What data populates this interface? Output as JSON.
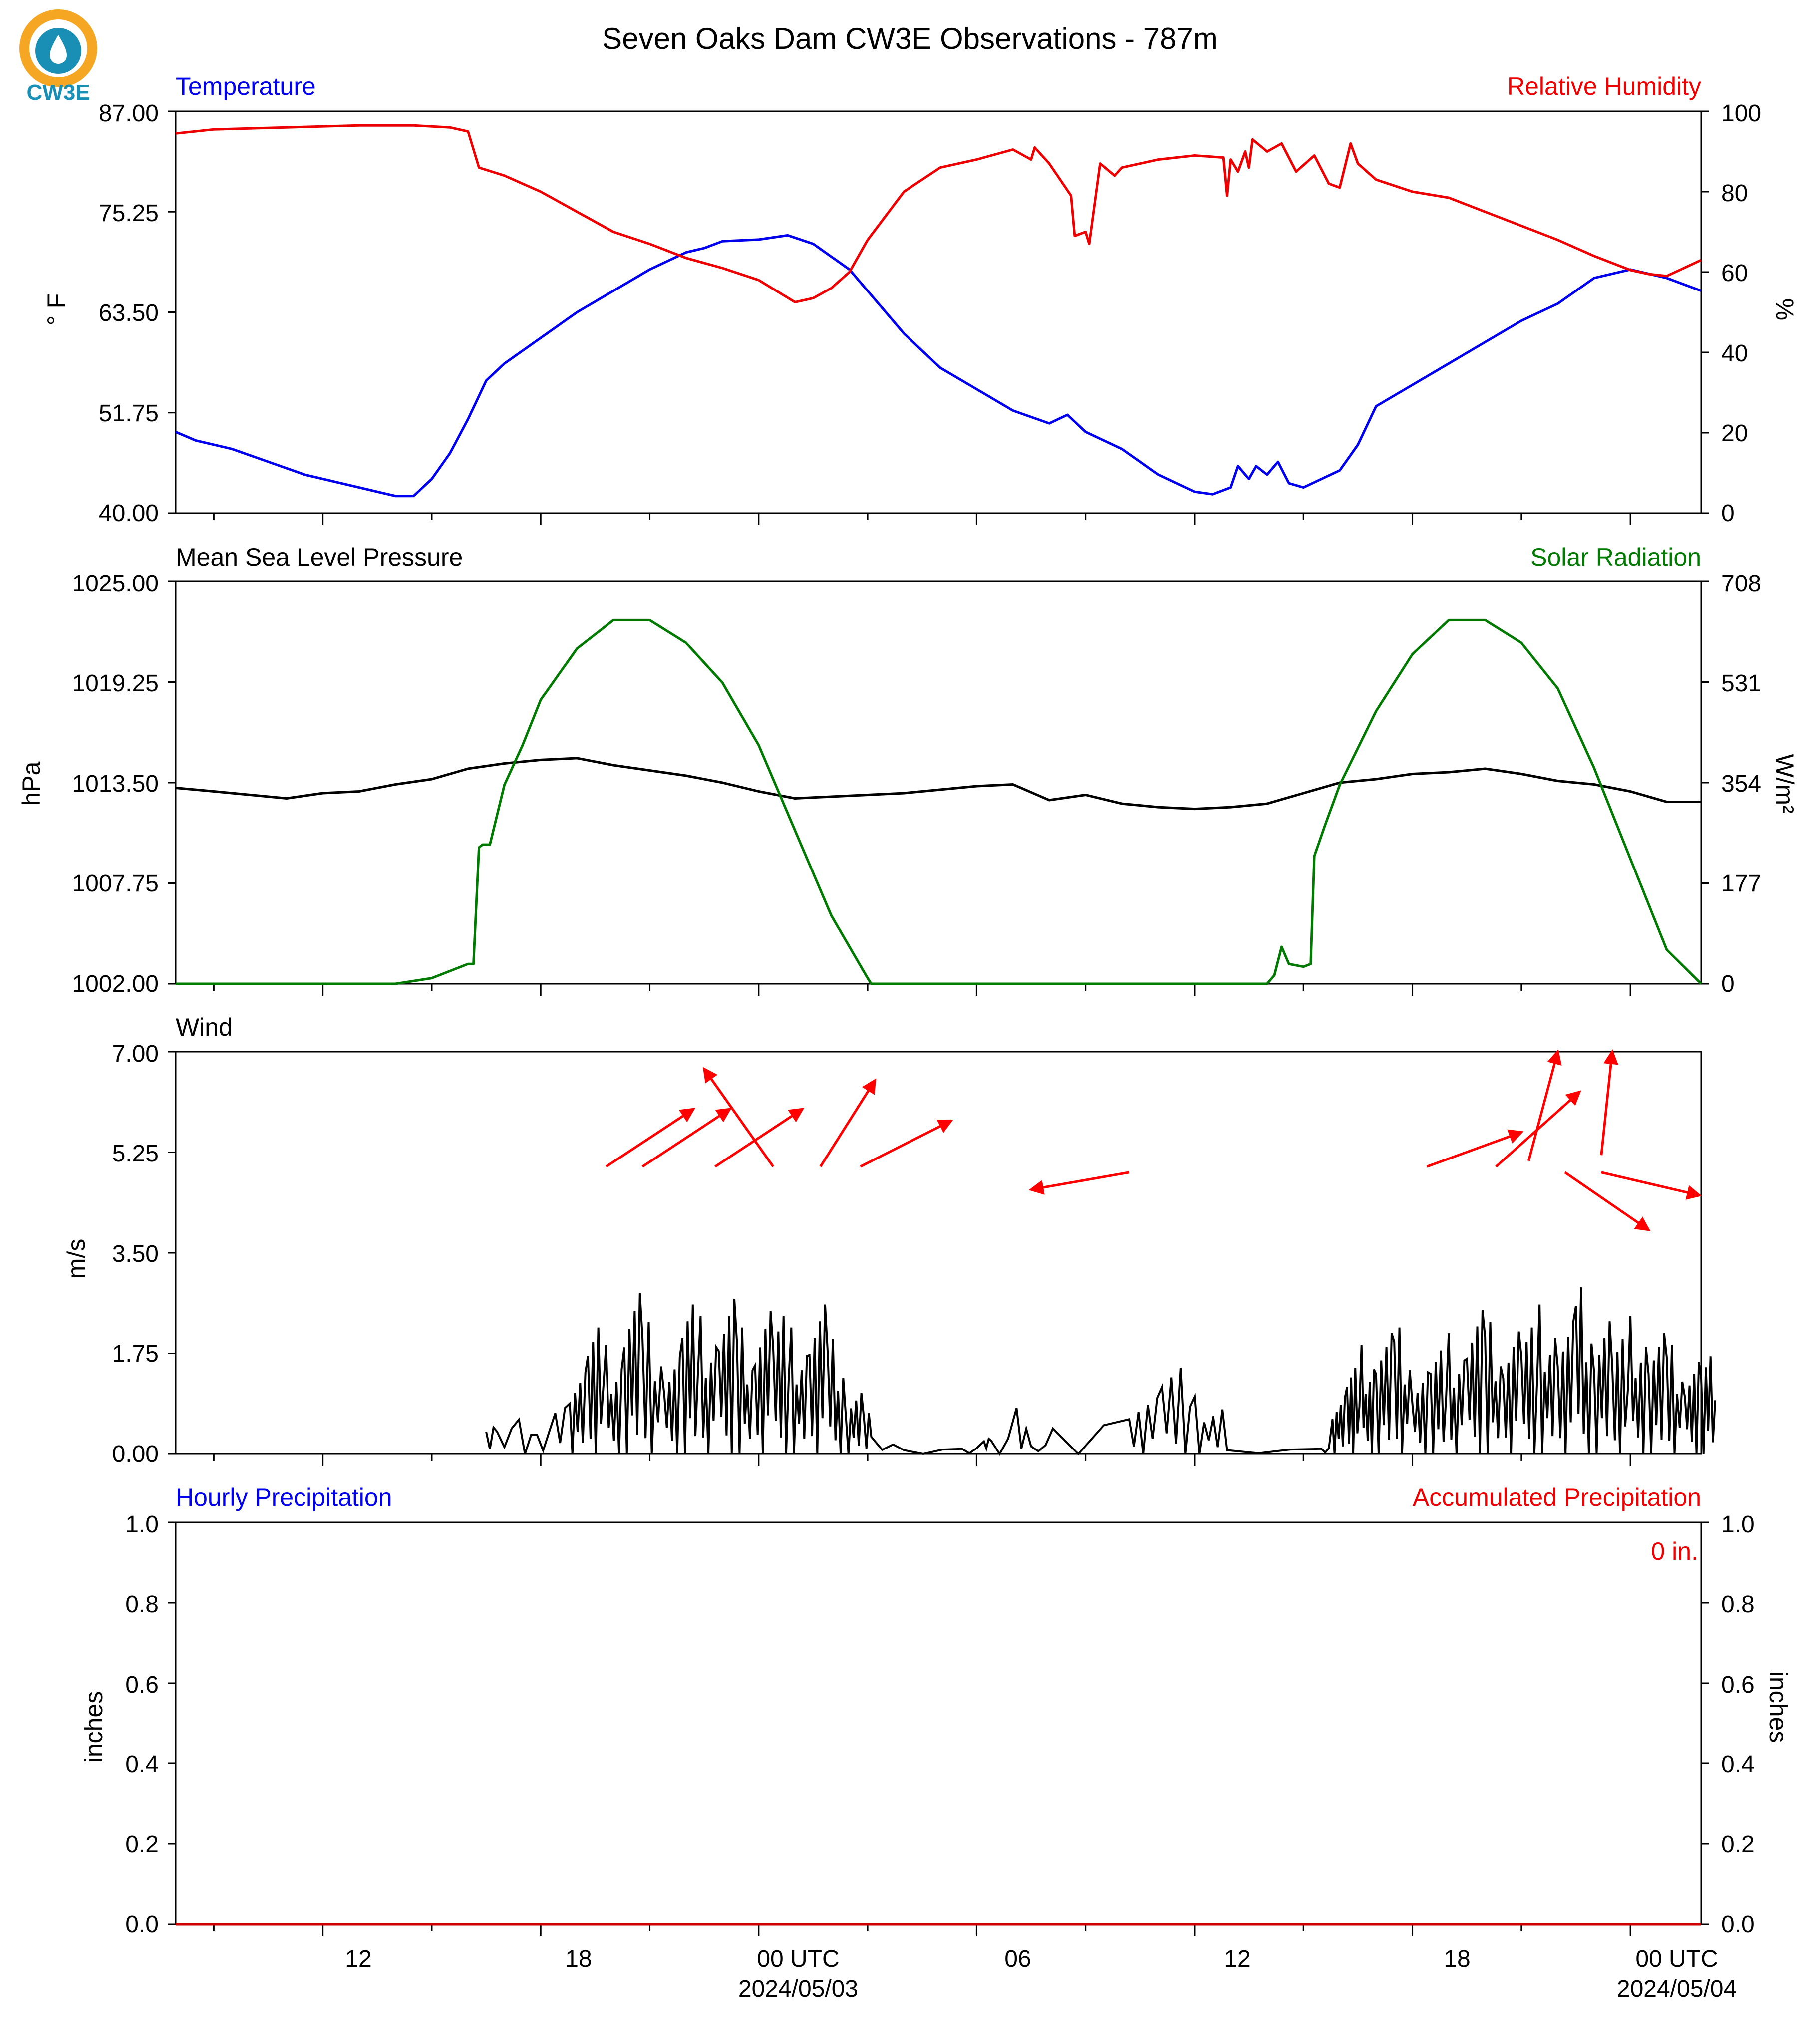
{
  "figure": {
    "title": "Seven Oaks Dam CW3E Observations - 787m",
    "logo_text": "CW3E"
  },
  "colors": {
    "temperature": "#0000ee",
    "humidity": "#ee0000",
    "pressure": "#000000",
    "solar": "#007a00",
    "wind": "#000000",
    "wind_arrows": "#ff0000",
    "hourly_precip": "#0000ee",
    "accum_precip": "#cc0000",
    "logo_ring": "#f5a623",
    "logo_drop": "#1a8fb5"
  },
  "x_axis": {
    "unit": "hours from 2024-05-02 00 UTC",
    "range": [
      6.95,
      48.95
    ],
    "tick_labels": [
      {
        "hour": 12,
        "label": "12"
      },
      {
        "hour": 18,
        "label": "18"
      },
      {
        "hour": 24,
        "label": "00 UTC",
        "date": "2024/05/03"
      },
      {
        "hour": 30,
        "label": "06"
      },
      {
        "hour": 36,
        "label": "12"
      },
      {
        "hour": 42,
        "label": "18"
      },
      {
        "hour": 48,
        "label": "00 UTC",
        "date": "2024/05/04"
      }
    ],
    "major_ticks": [
      11,
      17,
      23,
      29,
      35,
      41,
      47
    ],
    "minor_ticks": [
      8,
      14,
      20,
      26,
      32,
      38,
      44
    ]
  },
  "chart_data": [
    {
      "type": "line",
      "panel": "temperature-humidity",
      "left_label": "Temperature",
      "right_label": "Relative Humidity",
      "ylabel_left": "° F",
      "ylabel_right": "%",
      "ylim_left": [
        40.0,
        87.0
      ],
      "ylim_right": [
        0,
        100
      ],
      "yticks_left": [
        "40.00",
        "51.75",
        "63.50",
        "75.25",
        "87.00"
      ],
      "yticks_right": [
        "0",
        "20",
        "40",
        "60",
        "80",
        "100"
      ],
      "series": [
        {
          "name": "Temperature",
          "axis": "left",
          "color_key": "temperature",
          "x": [
            6.95,
            7.5,
            8.5,
            9.5,
            10.5,
            11.5,
            12.5,
            13.0,
            13.5,
            14.0,
            14.5,
            15.0,
            15.5,
            16.0,
            17.0,
            18.0,
            19.0,
            20.0,
            21.0,
            21.5,
            22.0,
            23.0,
            23.8,
            24.5,
            25.0,
            25.5,
            26.0,
            27.0,
            28.0,
            29.0,
            30.0,
            31.0,
            31.5,
            32.0,
            33.0,
            34.0,
            35.0,
            35.5,
            36.0,
            36.2,
            36.5,
            36.7,
            37.0,
            37.3,
            37.6,
            38.0,
            38.5,
            39.0,
            39.5,
            40.0,
            41.0,
            42.0,
            43.0,
            44.0,
            45.0,
            46.0,
            47.0,
            48.0,
            48.95
          ],
          "values": [
            49.5,
            48.5,
            47.5,
            46.0,
            44.5,
            43.5,
            42.5,
            42.0,
            42.0,
            44.0,
            47.0,
            51.0,
            55.5,
            57.5,
            60.5,
            63.5,
            66.0,
            68.5,
            70.5,
            71.0,
            71.8,
            72.0,
            72.5,
            71.5,
            70.0,
            68.5,
            66.0,
            61.0,
            57.0,
            54.5,
            52.0,
            50.5,
            51.5,
            49.5,
            47.5,
            44.5,
            42.5,
            42.2,
            43.0,
            45.5,
            44.0,
            45.5,
            44.5,
            46.0,
            43.5,
            43.0,
            44.0,
            45.0,
            48.0,
            52.5,
            55.0,
            57.5,
            60.0,
            62.5,
            64.5,
            67.5,
            68.5,
            67.5,
            66.0
          ]
        },
        {
          "name": "Relative Humidity",
          "axis": "right",
          "color_key": "humidity",
          "x": [
            6.95,
            8.0,
            10.0,
            12.0,
            13.5,
            14.5,
            15.0,
            15.3,
            16.0,
            17.0,
            18.0,
            19.0,
            20.0,
            21.0,
            22.0,
            23.0,
            24.0,
            24.5,
            25.0,
            25.5,
            26.0,
            27.0,
            28.0,
            29.0,
            30.0,
            30.5,
            30.6,
            31.0,
            31.3,
            31.6,
            31.7,
            32.0,
            32.1,
            32.4,
            32.8,
            33.0,
            34.0,
            35.0,
            35.8,
            35.9,
            36.0,
            36.2,
            36.4,
            36.5,
            36.6,
            37.0,
            37.4,
            37.8,
            38.3,
            38.7,
            39.0,
            39.3,
            39.5,
            40.0,
            41.0,
            42.0,
            43.0,
            44.0,
            45.0,
            46.0,
            47.0,
            47.5,
            48.0,
            48.95
          ],
          "values": [
            94.5,
            95.5,
            96.0,
            96.5,
            96.5,
            96.0,
            95.0,
            86.0,
            84.0,
            80.0,
            75.0,
            70.0,
            67.0,
            63.5,
            61.0,
            58.0,
            52.5,
            53.5,
            56.0,
            60.0,
            68.0,
            80.0,
            86.0,
            88.0,
            90.5,
            88.0,
            91.0,
            87.0,
            83.0,
            79.0,
            69.0,
            70.0,
            67.0,
            87.0,
            84.0,
            86.0,
            88.0,
            89.0,
            88.5,
            79.0,
            88.0,
            85.0,
            90.0,
            86.0,
            93.0,
            90.0,
            92.0,
            85.0,
            89.0,
            82.0,
            81.0,
            92.0,
            87.0,
            83.0,
            80.0,
            78.5,
            75.0,
            71.5,
            68.0,
            64.0,
            60.5,
            59.5,
            59.0,
            63.0
          ]
        }
      ]
    },
    {
      "type": "line",
      "panel": "pressure-solar",
      "left_label": "Mean Sea Level Pressure",
      "right_label": "Solar Radiation",
      "ylabel_left": "hPa",
      "ylabel_right": "W/m²",
      "ylim_left": [
        1002.0,
        1025.0
      ],
      "ylim_right": [
        0,
        708
      ],
      "yticks_left": [
        "1002.00",
        "1007.75",
        "1013.50",
        "1019.25",
        "1025.00"
      ],
      "yticks_right": [
        "0",
        "177",
        "354",
        "531",
        "708"
      ],
      "series": [
        {
          "name": "Mean Sea Level Pressure",
          "axis": "left",
          "color_key": "pressure",
          "x": [
            6.95,
            8.0,
            9.0,
            10.0,
            11.0,
            12.0,
            13.0,
            14.0,
            15.0,
            16.0,
            17.0,
            18.0,
            19.0,
            20.0,
            21.0,
            22.0,
            23.0,
            24.0,
            25.0,
            26.0,
            27.0,
            28.0,
            29.0,
            30.0,
            31.0,
            32.0,
            33.0,
            34.0,
            35.0,
            36.0,
            37.0,
            38.0,
            39.0,
            40.0,
            41.0,
            42.0,
            43.0,
            44.0,
            45.0,
            46.0,
            47.0,
            48.0,
            48.95
          ],
          "values": [
            1013.2,
            1013.0,
            1012.8,
            1012.6,
            1012.9,
            1013.0,
            1013.4,
            1013.7,
            1014.3,
            1014.6,
            1014.8,
            1014.9,
            1014.5,
            1014.2,
            1013.9,
            1013.5,
            1013.0,
            1012.6,
            1012.7,
            1012.8,
            1012.9,
            1013.1,
            1013.3,
            1013.4,
            1012.5,
            1012.8,
            1012.3,
            1012.1,
            1012.0,
            1012.1,
            1012.3,
            1012.9,
            1013.5,
            1013.7,
            1014.0,
            1014.1,
            1014.3,
            1014.0,
            1013.6,
            1013.4,
            1013.0,
            1012.4,
            1012.4
          ]
        },
        {
          "name": "Solar Radiation",
          "axis": "right",
          "color_key": "solar",
          "x": [
            6.95,
            13.0,
            14.0,
            15.0,
            15.15,
            15.3,
            15.4,
            15.6,
            16.0,
            16.5,
            17.0,
            18.0,
            19.0,
            20.0,
            21.0,
            22.0,
            23.0,
            24.0,
            25.0,
            26.0,
            26.1,
            27.0,
            30.0,
            33.0,
            36.0,
            37.0,
            37.2,
            37.4,
            37.6,
            38.0,
            38.2,
            38.3,
            38.6,
            39.0,
            40.0,
            41.0,
            42.0,
            43.0,
            44.0,
            45.0,
            46.0,
            47.0,
            48.0,
            48.95
          ],
          "values": [
            0,
            0,
            10,
            35,
            35,
            240,
            245,
            245,
            350,
            420,
            500,
            590,
            640,
            640,
            600,
            530,
            420,
            270,
            120,
            10,
            0,
            0,
            0,
            0,
            0,
            0,
            15,
            65,
            35,
            30,
            35,
            225,
            280,
            350,
            480,
            580,
            640,
            640,
            600,
            520,
            380,
            220,
            60,
            0
          ]
        }
      ]
    },
    {
      "type": "line",
      "panel": "wind",
      "left_label": "Wind",
      "ylabel_left": "m/s",
      "ylim": [
        0.0,
        7.0
      ],
      "yticks_left": [
        "0.00",
        "1.75",
        "3.50",
        "5.25",
        "7.00"
      ],
      "series": [
        {
          "name": "Wind",
          "axis": "left",
          "color_key": "wind",
          "x": [
            15.5,
            15.8,
            16.4,
            16.9,
            17.4,
            17.8,
            18.3,
            18.8,
            19.3,
            19.8,
            20.4,
            20.9,
            21.4,
            21.9,
            22.4,
            22.9,
            23.4,
            23.9,
            24.4,
            24.9,
            25.4,
            25.9,
            26.1,
            27.0,
            28.6,
            29.2,
            29.4,
            30.1,
            30.5,
            31.1,
            33.2,
            34.1,
            35.0,
            35.9,
            38.5,
            38.8,
            39.2,
            39.6,
            40.0,
            40.5,
            41.0,
            41.5,
            42.0,
            42.5,
            43.0,
            43.5,
            44.0,
            44.5,
            45.0,
            45.5,
            46.0,
            46.5,
            47.0,
            47.5,
            48.0,
            48.5,
            48.95
          ],
          "values": [
            0.7,
            0.5,
            0.6,
            0.5,
            0.8,
            1.6,
            2.2,
            1.9,
            2.8,
            2.3,
            1.9,
            2.6,
            2.4,
            2.7,
            2.2,
            2.8,
            2.4,
            2.2,
            2.6,
            2.0,
            1.2,
            0.8,
            0.3,
            0.1,
            0.1,
            0.4,
            0.3,
            0.8,
            0.2,
            0.5,
            1.1,
            1.5,
            1.0,
            0.1,
            0.1,
            1.1,
            1.5,
            1.9,
            2.1,
            2.2,
            1.6,
            1.8,
            2.1,
            2.5,
            2.3,
            2.4,
            2.2,
            2.6,
            2.3,
            2.9,
            2.6,
            2.0,
            2.4,
            2.1,
            1.9,
            1.8,
            1.7
          ]
        }
      ],
      "wind_arrows": [
        {
          "x": 18.8,
          "y": 5.0,
          "x2": 21.2,
          "y2": 6.0
        },
        {
          "x": 19.8,
          "y": 5.0,
          "x2": 22.2,
          "y2": 6.0
        },
        {
          "x": 21.8,
          "y": 5.0,
          "x2": 24.2,
          "y2": 6.0
        },
        {
          "x": 23.4,
          "y": 5.0,
          "x2": 21.5,
          "y2": 6.7
        },
        {
          "x": 24.7,
          "y": 5.0,
          "x2": 26.2,
          "y2": 6.5
        },
        {
          "x": 25.8,
          "y": 5.0,
          "x2": 28.3,
          "y2": 5.8
        },
        {
          "x": 33.2,
          "y": 4.9,
          "x2": 30.5,
          "y2": 4.6
        },
        {
          "x": 41.4,
          "y": 5.0,
          "x2": 44.0,
          "y2": 5.6
        },
        {
          "x": 43.3,
          "y": 5.0,
          "x2": 45.6,
          "y2": 6.3
        },
        {
          "x": 44.2,
          "y": 5.1,
          "x2": 45.0,
          "y2": 7.0
        },
        {
          "x": 45.2,
          "y": 4.9,
          "x2": 47.5,
          "y2": 3.9
        },
        {
          "x": 46.2,
          "y": 5.2,
          "x2": 46.5,
          "y2": 7.0
        },
        {
          "x": 46.2,
          "y": 4.9,
          "x2": 48.9,
          "y2": 4.5
        }
      ]
    },
    {
      "type": "line",
      "panel": "precipitation",
      "left_label": "Hourly Precipitation",
      "right_label": "Accumulated Precipitation",
      "ylabel_left": "inches",
      "ylabel_right": "inches",
      "ylim_left": [
        0.0,
        1.0
      ],
      "ylim_right": [
        0.0,
        1.0
      ],
      "yticks_left": [
        "0.0",
        "0.2",
        "0.4",
        "0.6",
        "0.8",
        "1.0"
      ],
      "yticks_right": [
        "0.0",
        "0.2",
        "0.4",
        "0.6",
        "0.8",
        "1.0"
      ],
      "total_label": "0 in.",
      "series": [
        {
          "name": "Accumulated Precipitation",
          "axis": "right",
          "color_key": "accum_precip",
          "x": [
            6.95,
            48.95
          ],
          "values": [
            0,
            0
          ]
        }
      ]
    }
  ]
}
